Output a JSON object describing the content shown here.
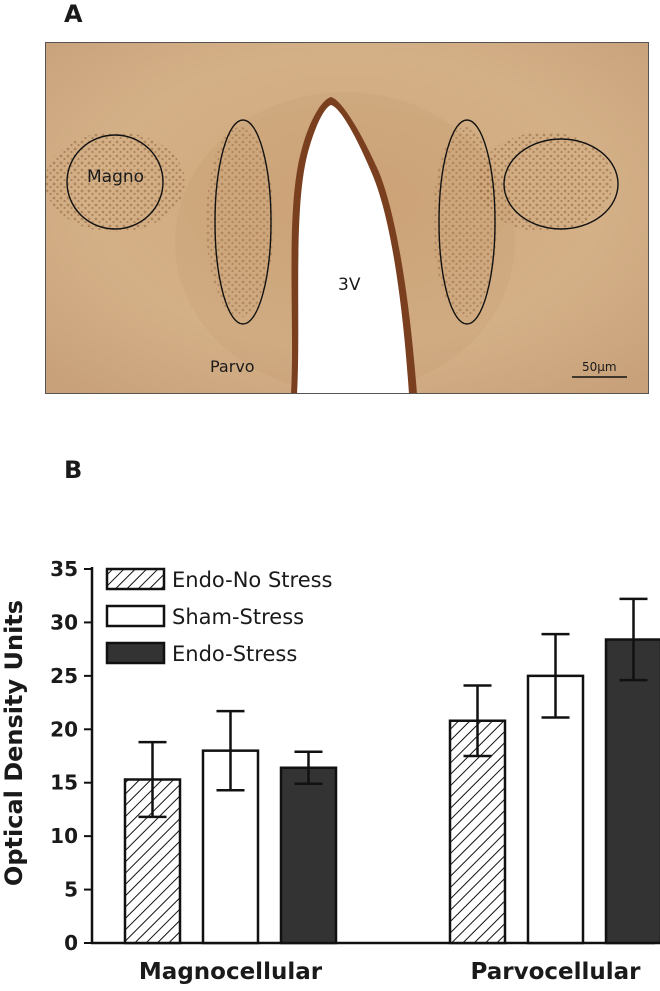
{
  "panel_a": {
    "label": "A",
    "regions": {
      "magno": "Magno",
      "parvo": "Parvo",
      "ventricle": "3V"
    },
    "scale_bar": "50µm"
  },
  "panel_b": {
    "label": "B"
  },
  "chart_data": {
    "type": "bar",
    "title": "",
    "xlabel": "",
    "ylabel": "Optical Density Units",
    "ylim": [
      0,
      35
    ],
    "yticks": [
      0,
      5,
      10,
      15,
      20,
      25,
      30,
      35
    ],
    "grid": false,
    "legend_position": "top-left",
    "categories": [
      "Magnocellular",
      "Parvocellular"
    ],
    "series": [
      {
        "name": "Endo-No Stress",
        "fill": "hatched",
        "color": "#ffffff",
        "values": [
          15.3,
          20.8
        ],
        "errors": [
          3.5,
          3.3
        ]
      },
      {
        "name": "Sham-Stress",
        "fill": "open",
        "color": "#ffffff",
        "values": [
          18.0,
          25.0
        ],
        "errors": [
          3.7,
          3.9
        ]
      },
      {
        "name": "Endo-Stress",
        "fill": "solid",
        "color": "#333333",
        "values": [
          16.4,
          28.4
        ],
        "errors": [
          1.5,
          3.8
        ]
      }
    ]
  }
}
